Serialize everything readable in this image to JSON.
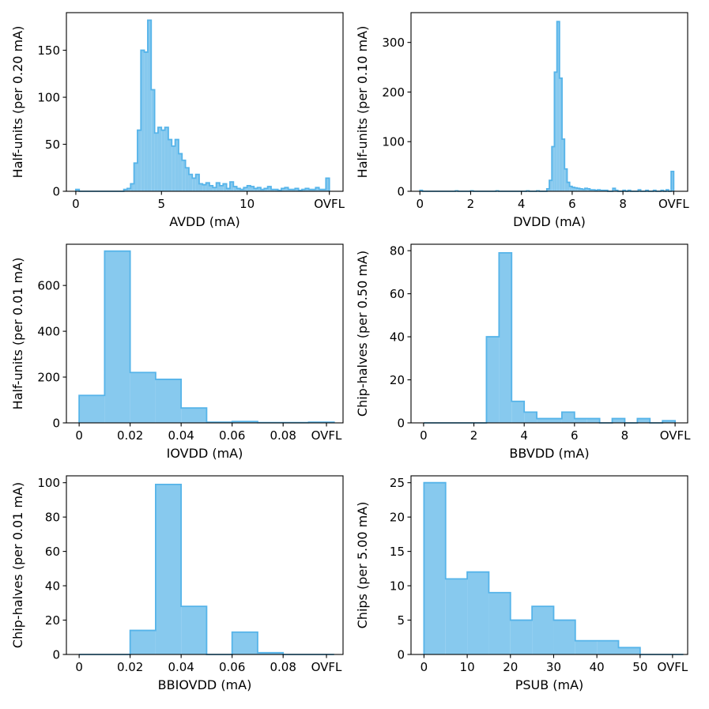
{
  "chart_data": [
    {
      "type": "histogram",
      "id": "avdd",
      "xlabel": "AVDD (mA)",
      "ylabel": "Half-units (per 0.20 mA)",
      "bin_width": 0.2,
      "xlim": [
        -0.55,
        15.6
      ],
      "ylim": [
        0,
        190
      ],
      "xticks": [
        0,
        5,
        10
      ],
      "overflow_tick": "OVFL",
      "overflow_position": 14.8,
      "yticks": [
        0,
        50,
        100,
        150
      ],
      "bins": [
        {
          "x": 0.0,
          "v": 2
        },
        {
          "x": 2.8,
          "v": 2
        },
        {
          "x": 3.0,
          "v": 3
        },
        {
          "x": 3.2,
          "v": 8
        },
        {
          "x": 3.4,
          "v": 30
        },
        {
          "x": 3.6,
          "v": 65
        },
        {
          "x": 3.8,
          "v": 150
        },
        {
          "x": 4.0,
          "v": 148
        },
        {
          "x": 4.2,
          "v": 182
        },
        {
          "x": 4.4,
          "v": 108
        },
        {
          "x": 4.6,
          "v": 62
        },
        {
          "x": 4.8,
          "v": 68
        },
        {
          "x": 5.0,
          "v": 65
        },
        {
          "x": 5.2,
          "v": 68
        },
        {
          "x": 5.4,
          "v": 55
        },
        {
          "x": 5.6,
          "v": 48
        },
        {
          "x": 5.8,
          "v": 55
        },
        {
          "x": 6.0,
          "v": 40
        },
        {
          "x": 6.2,
          "v": 33
        },
        {
          "x": 6.4,
          "v": 25
        },
        {
          "x": 6.6,
          "v": 18
        },
        {
          "x": 6.8,
          "v": 14
        },
        {
          "x": 7.0,
          "v": 18
        },
        {
          "x": 7.2,
          "v": 8
        },
        {
          "x": 7.4,
          "v": 7
        },
        {
          "x": 7.6,
          "v": 9
        },
        {
          "x": 7.8,
          "v": 6
        },
        {
          "x": 8.0,
          "v": 4
        },
        {
          "x": 8.2,
          "v": 9
        },
        {
          "x": 8.4,
          "v": 6
        },
        {
          "x": 8.6,
          "v": 8
        },
        {
          "x": 8.8,
          "v": 3
        },
        {
          "x": 9.0,
          "v": 10
        },
        {
          "x": 9.2,
          "v": 5
        },
        {
          "x": 9.4,
          "v": 3
        },
        {
          "x": 9.6,
          "v": 2
        },
        {
          "x": 9.8,
          "v": 4
        },
        {
          "x": 10.0,
          "v": 6
        },
        {
          "x": 10.2,
          "v": 5
        },
        {
          "x": 10.4,
          "v": 3
        },
        {
          "x": 10.6,
          "v": 4
        },
        {
          "x": 10.8,
          "v": 2
        },
        {
          "x": 11.0,
          "v": 3
        },
        {
          "x": 11.2,
          "v": 5
        },
        {
          "x": 11.4,
          "v": 2
        },
        {
          "x": 11.6,
          "v": 2
        },
        {
          "x": 11.8,
          "v": 1
        },
        {
          "x": 12.0,
          "v": 3
        },
        {
          "x": 12.2,
          "v": 4
        },
        {
          "x": 12.4,
          "v": 2
        },
        {
          "x": 12.6,
          "v": 2
        },
        {
          "x": 12.8,
          "v": 3
        },
        {
          "x": 13.0,
          "v": 1
        },
        {
          "x": 13.2,
          "v": 2
        },
        {
          "x": 13.4,
          "v": 3
        },
        {
          "x": 13.6,
          "v": 2
        },
        {
          "x": 13.8,
          "v": 2
        },
        {
          "x": 14.0,
          "v": 4
        },
        {
          "x": 14.2,
          "v": 2
        },
        {
          "x": 14.4,
          "v": 2
        },
        {
          "x": 14.6,
          "v": 14
        }
      ]
    },
    {
      "type": "histogram",
      "id": "dvdd",
      "xlabel": "DVDD (mA)",
      "ylabel": "Half-units (per 0.10 mA)",
      "bin_width": 0.1,
      "xlim": [
        -0.35,
        10.55
      ],
      "ylim": [
        0,
        360
      ],
      "xticks": [
        0,
        2,
        4,
        6,
        8
      ],
      "overflow_tick": "OVFL",
      "overflow_position": 10.0,
      "yticks": [
        0,
        100,
        200,
        300
      ],
      "bins": [
        {
          "x": 0.0,
          "v": 2
        },
        {
          "x": 1.4,
          "v": 1
        },
        {
          "x": 2.0,
          "v": 1
        },
        {
          "x": 3.0,
          "v": 1
        },
        {
          "x": 4.2,
          "v": 1
        },
        {
          "x": 4.6,
          "v": 1
        },
        {
          "x": 5.0,
          "v": 5
        },
        {
          "x": 5.1,
          "v": 22
        },
        {
          "x": 5.2,
          "v": 90
        },
        {
          "x": 5.3,
          "v": 240
        },
        {
          "x": 5.4,
          "v": 342
        },
        {
          "x": 5.5,
          "v": 228
        },
        {
          "x": 5.6,
          "v": 105
        },
        {
          "x": 5.7,
          "v": 45
        },
        {
          "x": 5.8,
          "v": 18
        },
        {
          "x": 5.9,
          "v": 10
        },
        {
          "x": 6.0,
          "v": 8
        },
        {
          "x": 6.1,
          "v": 7
        },
        {
          "x": 6.2,
          "v": 6
        },
        {
          "x": 6.3,
          "v": 5
        },
        {
          "x": 6.4,
          "v": 4
        },
        {
          "x": 6.5,
          "v": 6
        },
        {
          "x": 6.6,
          "v": 5
        },
        {
          "x": 6.7,
          "v": 3
        },
        {
          "x": 6.8,
          "v": 3
        },
        {
          "x": 6.9,
          "v": 2
        },
        {
          "x": 7.0,
          "v": 3
        },
        {
          "x": 7.1,
          "v": 2
        },
        {
          "x": 7.2,
          "v": 2
        },
        {
          "x": 7.3,
          "v": 2
        },
        {
          "x": 7.6,
          "v": 6
        },
        {
          "x": 7.7,
          "v": 2
        },
        {
          "x": 8.0,
          "v": 2
        },
        {
          "x": 8.2,
          "v": 2
        },
        {
          "x": 8.6,
          "v": 3
        },
        {
          "x": 8.9,
          "v": 2
        },
        {
          "x": 9.2,
          "v": 2
        },
        {
          "x": 9.5,
          "v": 2
        },
        {
          "x": 9.7,
          "v": 3
        },
        {
          "x": 9.9,
          "v": 40
        }
      ]
    },
    {
      "type": "histogram",
      "id": "iovdd",
      "xlabel": "IOVDD (mA)",
      "ylabel": "Half-units (per 0.01 mA)",
      "bin_width": 0.01,
      "xlim": [
        -0.005,
        0.1035
      ],
      "ylim": [
        0,
        780
      ],
      "xticks": [
        0,
        0.02,
        0.04,
        0.06,
        0.08
      ],
      "overflow_tick": "OVFL",
      "overflow_position": 0.097,
      "yticks": [
        0,
        200,
        400,
        600
      ],
      "bins": [
        {
          "x": 0.0,
          "v": 120
        },
        {
          "x": 0.01,
          "v": 750
        },
        {
          "x": 0.02,
          "v": 220
        },
        {
          "x": 0.03,
          "v": 190
        },
        {
          "x": 0.04,
          "v": 65
        },
        {
          "x": 0.05,
          "v": 3
        },
        {
          "x": 0.06,
          "v": 6
        },
        {
          "x": 0.07,
          "v": 1
        },
        {
          "x": 0.08,
          "v": 1
        },
        {
          "x": 0.09,
          "v": 3
        }
      ]
    },
    {
      "type": "histogram",
      "id": "bbvdd",
      "xlabel": "BBVDD (mA)",
      "ylabel": "Chip-halves (per 0.50 mA)",
      "bin_width": 0.5,
      "xlim": [
        -0.5,
        10.5
      ],
      "ylim": [
        0,
        83
      ],
      "xticks": [
        0,
        2,
        4,
        6,
        8
      ],
      "overflow_tick": "OVFL",
      "overflow_position": 10.0,
      "yticks": [
        0,
        20,
        40,
        60,
        80
      ],
      "bins": [
        {
          "x": 0.0,
          "v": 0
        },
        {
          "x": 0.5,
          "v": 0
        },
        {
          "x": 1.0,
          "v": 0
        },
        {
          "x": 1.5,
          "v": 0
        },
        {
          "x": 2.0,
          "v": 0
        },
        {
          "x": 2.5,
          "v": 40
        },
        {
          "x": 3.0,
          "v": 79
        },
        {
          "x": 3.5,
          "v": 10
        },
        {
          "x": 4.0,
          "v": 5
        },
        {
          "x": 4.5,
          "v": 2
        },
        {
          "x": 5.0,
          "v": 2
        },
        {
          "x": 5.5,
          "v": 5
        },
        {
          "x": 6.0,
          "v": 2
        },
        {
          "x": 6.5,
          "v": 2
        },
        {
          "x": 7.0,
          "v": 0
        },
        {
          "x": 7.5,
          "v": 2
        },
        {
          "x": 8.0,
          "v": 0
        },
        {
          "x": 8.5,
          "v": 2
        },
        {
          "x": 9.0,
          "v": 0
        },
        {
          "x": 9.5,
          "v": 1
        }
      ]
    },
    {
      "type": "histogram",
      "id": "bbiovdd",
      "xlabel": "BBIOVDD (mA)",
      "ylabel": "Chip-halves (per 0.01 mA)",
      "bin_width": 0.01,
      "xlim": [
        -0.005,
        0.1035
      ],
      "ylim": [
        0,
        104
      ],
      "xticks": [
        0,
        0.02,
        0.04,
        0.06,
        0.08
      ],
      "overflow_tick": "OVFL",
      "overflow_position": 0.097,
      "yticks": [
        0,
        20,
        40,
        60,
        80,
        100
      ],
      "bins": [
        {
          "x": 0.0,
          "v": 0
        },
        {
          "x": 0.01,
          "v": 0
        },
        {
          "x": 0.02,
          "v": 14
        },
        {
          "x": 0.03,
          "v": 99
        },
        {
          "x": 0.04,
          "v": 28
        },
        {
          "x": 0.05,
          "v": 0
        },
        {
          "x": 0.06,
          "v": 13
        },
        {
          "x": 0.07,
          "v": 1
        },
        {
          "x": 0.08,
          "v": 0
        },
        {
          "x": 0.09,
          "v": 0
        }
      ]
    },
    {
      "type": "histogram",
      "id": "psub",
      "xlabel": "PSUB (mA)",
      "ylabel": "Chips (per 5.00 mA)",
      "bin_width": 5,
      "xlim": [
        -3.0,
        61.0
      ],
      "ylim": [
        0,
        26
      ],
      "xticks": [
        0,
        10,
        20,
        30,
        40,
        50
      ],
      "overflow_tick": "OVFL",
      "overflow_position": 57.5,
      "yticks": [
        0,
        5,
        10,
        15,
        20,
        25
      ],
      "bins": [
        {
          "x": 0,
          "v": 25
        },
        {
          "x": 5,
          "v": 11
        },
        {
          "x": 10,
          "v": 12
        },
        {
          "x": 15,
          "v": 9
        },
        {
          "x": 20,
          "v": 5
        },
        {
          "x": 25,
          "v": 7
        },
        {
          "x": 30,
          "v": 5
        },
        {
          "x": 35,
          "v": 2
        },
        {
          "x": 40,
          "v": 2
        },
        {
          "x": 45,
          "v": 1
        },
        {
          "x": 50,
          "v": 0
        },
        {
          "x": 55,
          "v": 0
        }
      ]
    }
  ],
  "style": {
    "fill_color": "#87c9ee",
    "edge_color": "#56b4e9"
  }
}
